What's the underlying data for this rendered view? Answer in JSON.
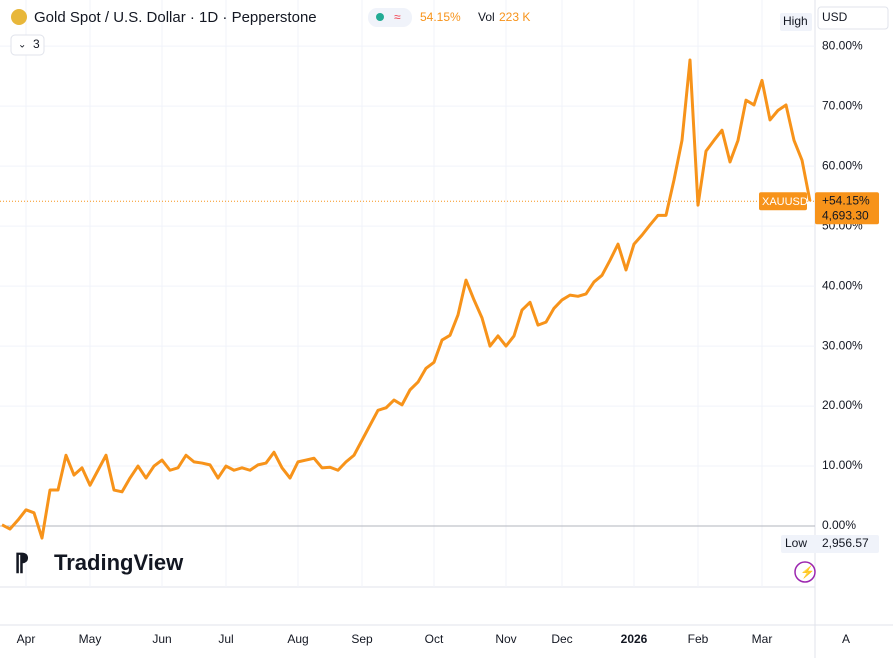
{
  "header": {
    "title": "Gold Spot / U.S. Dollar · 1D · Pepperstone",
    "change": "54.15%",
    "vol_label": "Vol",
    "vol_value": "223 K",
    "indicators": "3",
    "currency": "USD",
    "auto": "A",
    "logo": "TradingView"
  },
  "chart_data": {
    "type": "line",
    "categories": [
      null,
      null,
      null,
      "Apr",
      null,
      null,
      null,
      null,
      null,
      null,
      null,
      "May",
      null,
      null,
      null,
      null,
      null,
      null,
      null,
      null,
      "Jun",
      null,
      null,
      null,
      null,
      null,
      null,
      null,
      "Jul",
      null,
      null,
      null,
      null,
      null,
      null,
      null,
      null,
      "Aug",
      null,
      null,
      null,
      null,
      null,
      null,
      null,
      "Sep",
      null,
      null,
      null,
      null,
      null,
      null,
      null,
      null,
      "Oct",
      null,
      null,
      null,
      null,
      null,
      null,
      null,
      null,
      "Nov",
      null,
      null,
      null,
      null,
      null,
      null,
      "Dec",
      null,
      null,
      null,
      null,
      null,
      null,
      null,
      null,
      "2026",
      null,
      null,
      null,
      null,
      null,
      null,
      null,
      "Feb",
      null,
      null,
      null,
      null,
      null,
      null,
      null,
      "Mar",
      null,
      null,
      null,
      null,
      null,
      null
    ],
    "series": [
      {
        "name": "XAUUSD",
        "color": "#f7931a",
        "values": [
          0.2,
          -0.5,
          1,
          2.7,
          2.2,
          -2,
          6,
          6,
          11.8,
          8.5,
          9.7,
          6.8,
          9.3,
          11.8,
          6,
          5.7,
          8,
          10,
          8,
          10,
          11,
          9.3,
          9.7,
          11.8,
          10.7,
          10.5,
          10.2,
          8,
          10,
          9.3,
          9.7,
          9.3,
          10.2,
          10.5,
          12.3,
          9.7,
          8,
          10.7,
          11,
          11.3,
          9.7,
          9.8,
          9.3,
          10.7,
          11.8,
          14.3,
          16.8,
          19.3,
          19.7,
          21,
          20.2,
          22.7,
          24,
          26.3,
          27.3,
          31,
          31.8,
          35.2,
          41,
          37.7,
          34.7,
          30,
          31.7,
          30,
          31.7,
          36,
          37.3,
          33.5,
          34,
          36.3,
          37.7,
          38.5,
          38.3,
          38.7,
          40.7,
          41.8,
          44.3,
          47,
          42.7,
          47,
          48.5,
          50.2,
          51.8,
          51.8,
          57.7,
          64.3,
          77.7,
          53.5,
          62.5,
          64.3,
          66,
          60.7,
          64.3,
          71,
          70.2,
          74.3,
          67.7,
          69.3,
          70.2,
          64.3,
          61,
          54.15
        ]
      }
    ],
    "last_change": "+54.15%",
    "last_price": "4,693.30",
    "high_label": "High",
    "low_label": "Low",
    "low_value": "2,956.57",
    "ylim": [
      -16.5,
      87.7
    ],
    "yticks": [
      {
        "value": 0,
        "label": "0.00%"
      },
      {
        "value": 10,
        "label": "10.00%"
      },
      {
        "value": 20,
        "label": "20.00%"
      },
      {
        "value": 30,
        "label": "30.00%"
      },
      {
        "value": 40,
        "label": "40.00%"
      },
      {
        "value": 50,
        "label": "50.00%"
      },
      {
        "value": 60,
        "label": "60.00%"
      },
      {
        "value": 70,
        "label": "70.00%"
      },
      {
        "value": 80,
        "label": "80.00%"
      }
    ],
    "grid": true
  }
}
